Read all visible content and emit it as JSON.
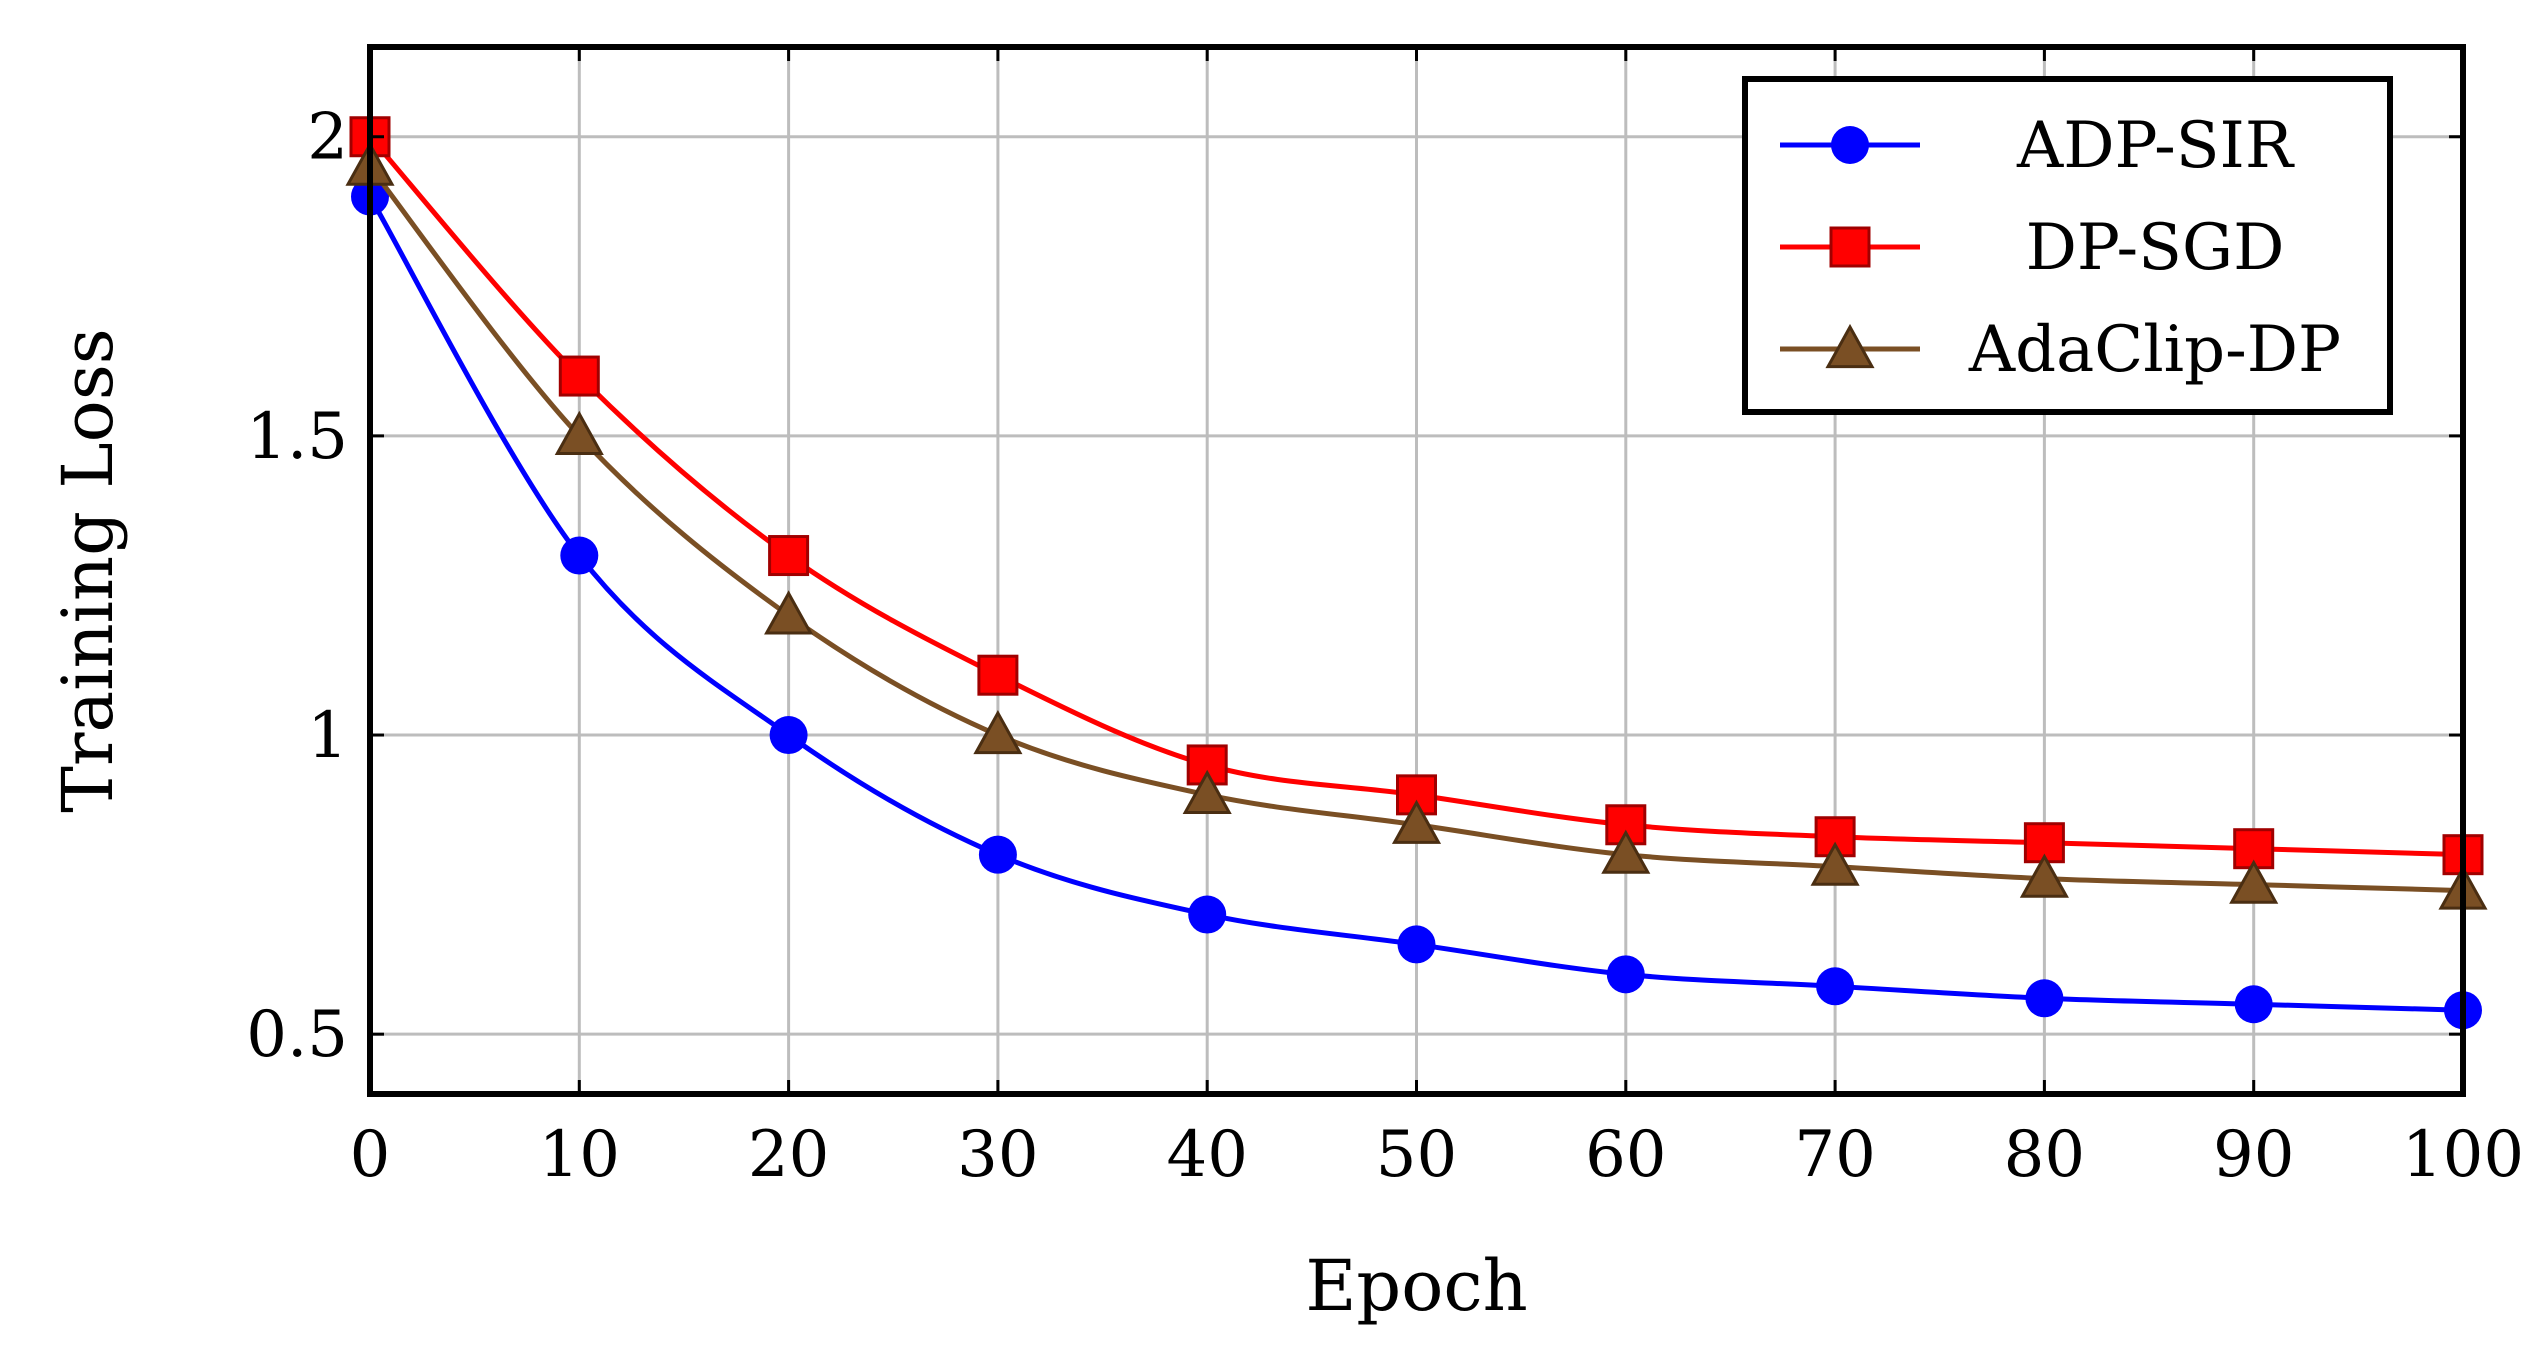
{
  "chart_data": {
    "type": "line",
    "title": "",
    "xlabel": "Epoch",
    "ylabel": "Training Loss",
    "x": [
      0,
      10,
      20,
      30,
      40,
      50,
      60,
      70,
      80,
      90,
      100
    ],
    "xlim": [
      0,
      100
    ],
    "ylim": [
      0.4,
      2.15
    ],
    "xticks": [
      0,
      10,
      20,
      30,
      40,
      50,
      60,
      70,
      80,
      90,
      100
    ],
    "xtick_labels": [
      "0",
      "10",
      "20",
      "30",
      "40",
      "50",
      "60",
      "70",
      "80",
      "90",
      "100"
    ],
    "yticks": [
      0.5,
      1,
      1.5,
      2
    ],
    "ytick_labels": [
      "0.5",
      "1",
      "1.5",
      "2"
    ],
    "grid": true,
    "legend_position": "top-right",
    "series": [
      {
        "name": "ADP-SIR",
        "color": "#0000ff",
        "marker": "circle",
        "values": [
          1.9,
          1.3,
          1.0,
          0.8,
          0.7,
          0.65,
          0.6,
          0.58,
          0.56,
          0.55,
          0.54
        ]
      },
      {
        "name": "DP-SGD",
        "color": "#ff0000",
        "marker": "square",
        "values": [
          2.0,
          1.6,
          1.3,
          1.1,
          0.95,
          0.9,
          0.85,
          0.83,
          0.82,
          0.81,
          0.8
        ]
      },
      {
        "name": "AdaClip-DP",
        "color": "#7a4f24",
        "marker": "triangle",
        "values": [
          1.95,
          1.5,
          1.2,
          1.0,
          0.9,
          0.85,
          0.8,
          0.78,
          0.76,
          0.75,
          0.74
        ]
      }
    ]
  }
}
